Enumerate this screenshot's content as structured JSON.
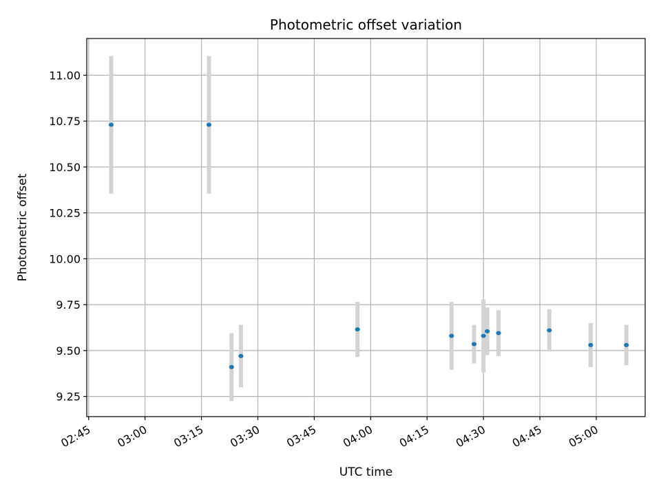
{
  "chart_data": {
    "type": "scatter",
    "title": "Photometric offset variation",
    "xlabel": "UTC time",
    "ylabel": "Photometric offset",
    "xlim": [
      "02:44:30",
      "05:13:00"
    ],
    "ylim": [
      9.14,
      11.2
    ],
    "x_ticks": [
      "02:45",
      "03:00",
      "03:15",
      "03:30",
      "03:45",
      "04:00",
      "04:15",
      "04:30",
      "04:45",
      "05:00"
    ],
    "y_ticks": [
      "9.25",
      "9.50",
      "9.75",
      "10.00",
      "10.25",
      "10.50",
      "10.75",
      "11.00"
    ],
    "grid": true,
    "colors": {
      "point": "#1f77b4",
      "errorbar": "#d3d3d3",
      "grid": "#b0b0b0"
    },
    "series": [
      {
        "points": [
          {
            "x": "02:51:00",
            "y": 10.73,
            "yerr": 0.375
          },
          {
            "x": "03:17:00",
            "y": 10.73,
            "yerr": 0.375
          },
          {
            "x": "03:23:00",
            "y": 9.41,
            "yerr": 0.185
          },
          {
            "x": "03:25:30",
            "y": 9.47,
            "yerr": 0.17
          },
          {
            "x": "03:56:30",
            "y": 9.615,
            "yerr": 0.15
          },
          {
            "x": "04:21:30",
            "y": 9.58,
            "yerr": 0.185
          },
          {
            "x": "04:27:30",
            "y": 9.535,
            "yerr": 0.105
          },
          {
            "x": "04:30:00",
            "y": 9.58,
            "yerr": 0.2
          },
          {
            "x": "04:31:00",
            "y": 9.605,
            "yerr": 0.13
          },
          {
            "x": "04:34:00",
            "y": 9.595,
            "yerr": 0.125
          },
          {
            "x": "04:47:30",
            "y": 9.61,
            "yerr": 0.115
          },
          {
            "x": "04:58:30",
            "y": 9.53,
            "yerr": 0.12
          },
          {
            "x": "05:08:00",
            "y": 9.53,
            "yerr": 0.11
          }
        ]
      }
    ]
  }
}
